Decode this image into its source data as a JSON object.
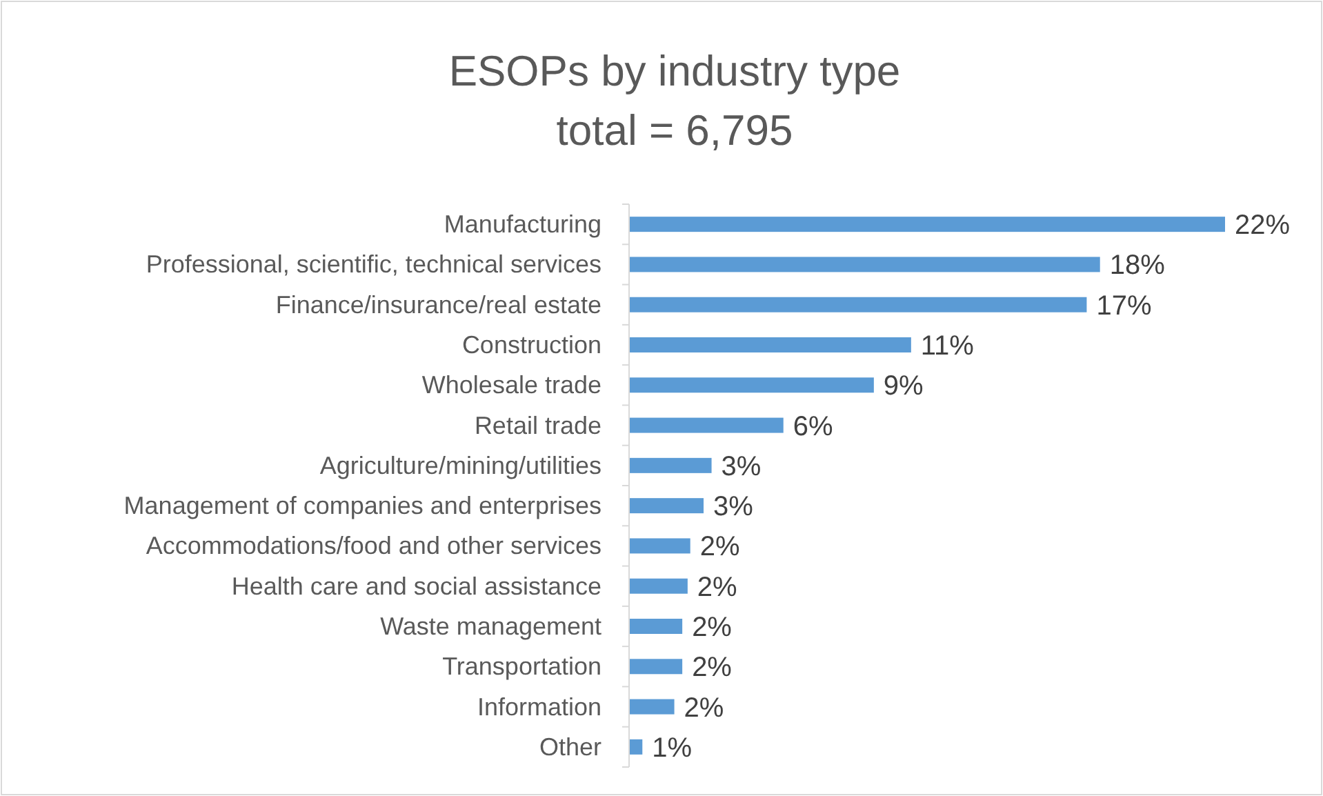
{
  "chart_data": {
    "type": "bar",
    "orientation": "horizontal",
    "title": "ESOPs by industry type",
    "subtitle": "total = 6,795",
    "categories": [
      "Manufacturing",
      "Professional, scientific, technical services",
      "Finance/insurance/real estate",
      "Construction",
      "Wholesale trade",
      "Retail trade",
      "Agriculture/mining/utilities",
      "Management of companies and enterprises",
      "Accommodations/food and other services",
      "Health care and social assistance",
      "Waste management",
      "Transportation",
      "Information",
      "Other"
    ],
    "values": [
      22.4,
      17.7,
      17.2,
      10.6,
      9.2,
      5.8,
      3.1,
      2.8,
      2.3,
      2.2,
      2.0,
      2.0,
      1.7,
      0.5
    ],
    "value_labels": [
      "22%",
      "18%",
      "17%",
      "11%",
      "9%",
      "6%",
      "3%",
      "3%",
      "2%",
      "2%",
      "2%",
      "2%",
      "2%",
      "1%"
    ],
    "color": "#5b9bd5"
  }
}
